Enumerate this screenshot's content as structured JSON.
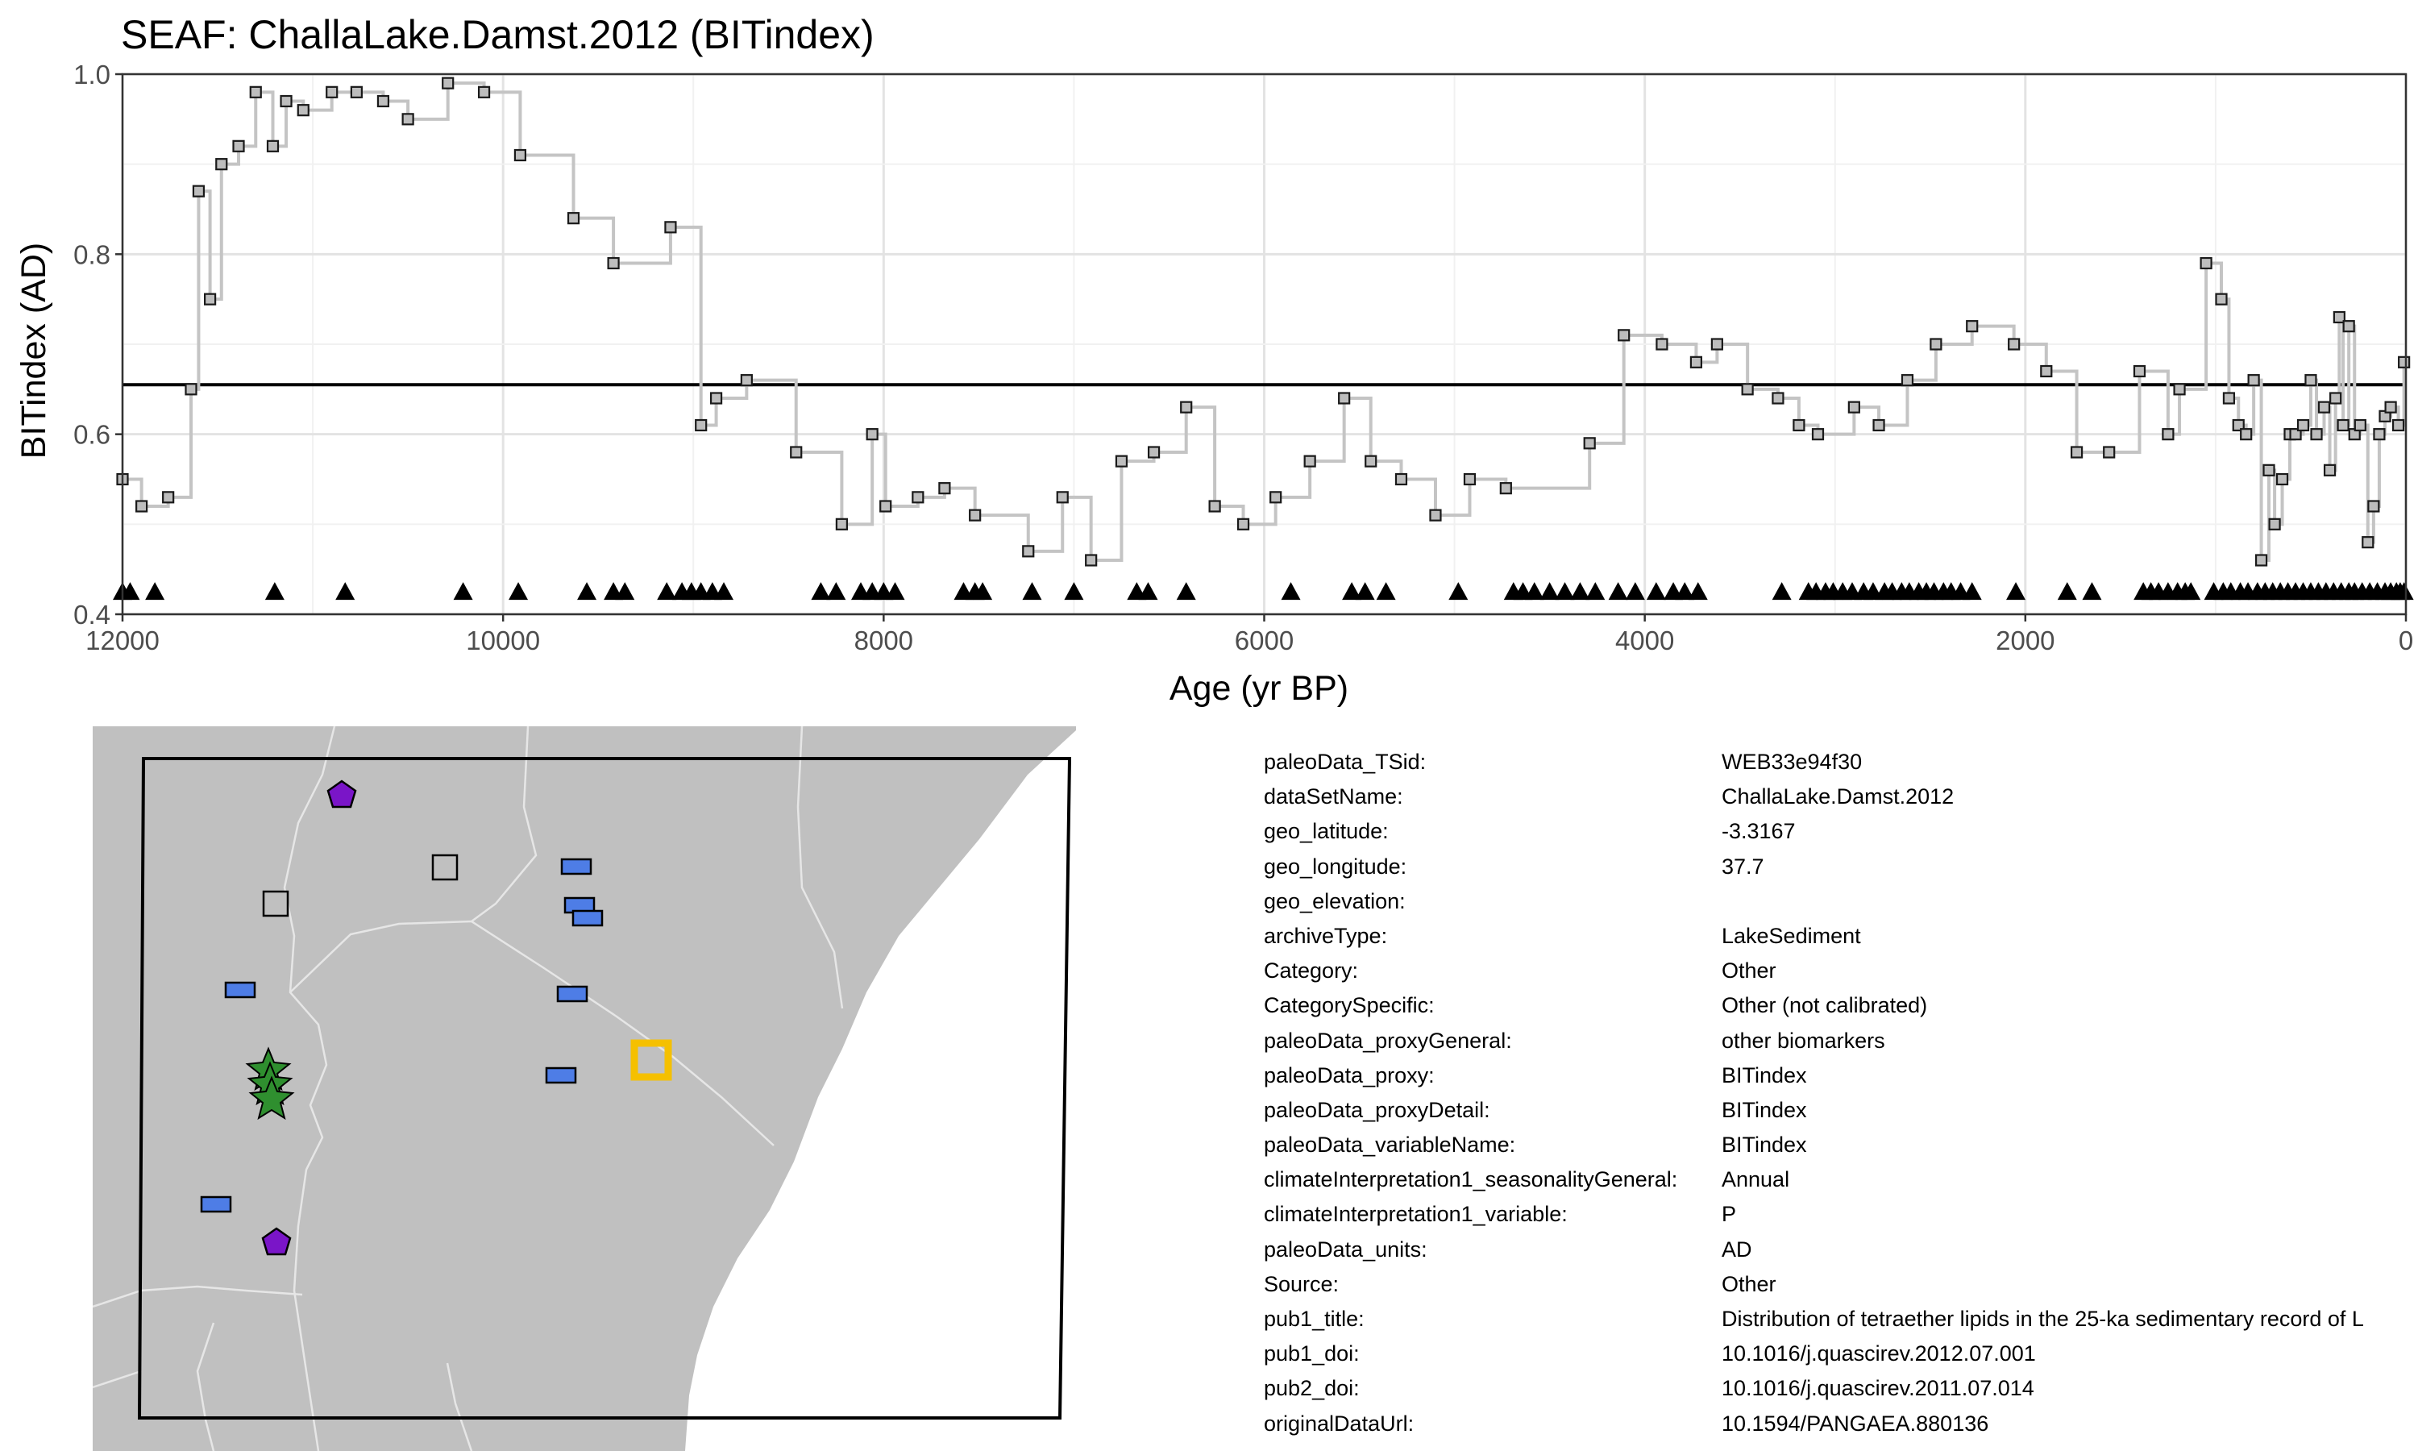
{
  "chart_data": {
    "type": "line",
    "title": "SEAF: ChallaLake.Damst.2012 (BITindex)",
    "xlabel": "Age (yr BP)",
    "ylabel": "BITindex (AD)",
    "xlim": [
      12000,
      0
    ],
    "ylim": [
      0.4,
      1.0
    ],
    "x_reversed": true,
    "x_ticks": [
      12000,
      10000,
      8000,
      6000,
      4000,
      2000,
      0
    ],
    "y_ticks": [
      0.4,
      0.6,
      0.8,
      1.0
    ],
    "y_tick_labels": [
      "0.4",
      "0.6",
      "0.8",
      "1.0"
    ],
    "grid": true,
    "mean_line": 0.655,
    "series": [
      {
        "style": "step-line-with-square-markers",
        "x": [
          12000,
          11900,
          11760,
          11640,
          11600,
          11540,
          11480,
          11390,
          11300,
          11210,
          11140,
          11050,
          10900,
          10770,
          10630,
          10500,
          10290,
          10100,
          9910,
          9630,
          9420,
          9120,
          8960,
          8880,
          8720,
          8460,
          8220,
          8060,
          7990,
          7820,
          7680,
          7520,
          7240,
          7060,
          6910,
          6750,
          6580,
          6410,
          6260,
          6110,
          5940,
          5760,
          5580,
          5440,
          5280,
          5100,
          4920,
          4730,
          4290,
          4110,
          3910,
          3730,
          3620,
          3460,
          3300,
          3190,
          3090,
          2900,
          2770,
          2620,
          2470,
          2280,
          2060,
          1890,
          1730,
          1560,
          1400,
          1250,
          1190,
          1050,
          970,
          930,
          880,
          840,
          800,
          760,
          720,
          690,
          650,
          610,
          580,
          540,
          500,
          470,
          430,
          400,
          370,
          350,
          330,
          300,
          270,
          240,
          200,
          170,
          140,
          110,
          80,
          40,
          10
        ],
        "y": [
          0.55,
          0.52,
          0.53,
          0.65,
          0.87,
          0.75,
          0.9,
          0.92,
          0.98,
          0.92,
          0.97,
          0.96,
          0.98,
          0.98,
          0.97,
          0.95,
          0.99,
          0.98,
          0.91,
          0.84,
          0.79,
          0.83,
          0.61,
          0.64,
          0.66,
          0.58,
          0.5,
          0.6,
          0.52,
          0.53,
          0.54,
          0.51,
          0.47,
          0.53,
          0.46,
          0.57,
          0.58,
          0.63,
          0.52,
          0.5,
          0.53,
          0.57,
          0.64,
          0.57,
          0.55,
          0.51,
          0.55,
          0.54,
          0.59,
          0.71,
          0.7,
          0.68,
          0.7,
          0.65,
          0.64,
          0.61,
          0.6,
          0.63,
          0.61,
          0.66,
          0.7,
          0.72,
          0.7,
          0.67,
          0.58,
          0.58,
          0.67,
          0.6,
          0.65,
          0.79,
          0.75,
          0.64,
          0.61,
          0.6,
          0.66,
          0.46,
          0.56,
          0.5,
          0.55,
          0.6,
          0.6,
          0.61,
          0.66,
          0.6,
          0.63,
          0.56,
          0.64,
          0.73,
          0.61,
          0.72,
          0.6,
          0.61,
          0.48,
          0.52,
          0.6,
          0.62,
          0.63,
          0.61,
          0.68
        ]
      },
      {
        "style": "triangle-age-markers",
        "y_value": 0.425,
        "x": [
          12000,
          11960,
          11830,
          11200,
          10830,
          10210,
          9920,
          9560,
          9420,
          9360,
          9140,
          9060,
          9010,
          8960,
          8900,
          8840,
          8330,
          8250,
          8120,
          8060,
          8000,
          7940,
          7580,
          7520,
          7480,
          7220,
          7000,
          6670,
          6610,
          6410,
          5860,
          5540,
          5470,
          5360,
          4980,
          4690,
          4640,
          4580,
          4500,
          4420,
          4340,
          4260,
          4140,
          4050,
          3940,
          3850,
          3790,
          3720,
          3280,
          3140,
          3100,
          3050,
          3010,
          2960,
          2910,
          2850,
          2800,
          2740,
          2700,
          2650,
          2610,
          2560,
          2520,
          2480,
          2430,
          2390,
          2340,
          2280,
          2050,
          1780,
          1650,
          1380,
          1340,
          1300,
          1250,
          1200,
          1160,
          1130,
          1010,
          960,
          920,
          870,
          830,
          780,
          740,
          700,
          660,
          620,
          580,
          540,
          500,
          460,
          420,
          380,
          340,
          300,
          270,
          230,
          190,
          150,
          110,
          80,
          50,
          30,
          10
        ]
      }
    ]
  },
  "map": {
    "land_color": "#c0c0c0",
    "water_color": "#ffffff",
    "border_color": "#e6e6e6",
    "markers": [
      {
        "shape": "pentagon",
        "color": "#7a15c8"
      },
      {
        "shape": "square",
        "color": "#c0c0c0"
      },
      {
        "shape": "square",
        "color": "#c0c0c0"
      },
      {
        "shape": "rectangle",
        "color": "#4e7de6"
      },
      {
        "shape": "rectangle",
        "color": "#4e7de6"
      },
      {
        "shape": "rectangle",
        "color": "#4e7de6"
      },
      {
        "shape": "rectangle",
        "color": "#4e7de6"
      },
      {
        "shape": "rectangle",
        "color": "#4e7de6"
      },
      {
        "shape": "rectangle",
        "color": "#4e7de6"
      },
      {
        "shape": "rectangle",
        "color": "#4e7de6"
      },
      {
        "shape": "star",
        "color": "#2f8f2f"
      },
      {
        "shape": "star",
        "color": "#2f8f2f"
      },
      {
        "shape": "star",
        "color": "#2f8f2f"
      },
      {
        "shape": "pentagon",
        "color": "#7a15c8"
      },
      {
        "shape": "highlight-square",
        "color": "#f5c000"
      }
    ]
  },
  "metadata": [
    {
      "key": "paleoData_TSid:",
      "value": "WEB33e94f30"
    },
    {
      "key": "dataSetName:",
      "value": "ChallaLake.Damst.2012"
    },
    {
      "key": "geo_latitude:",
      "value": "-3.3167"
    },
    {
      "key": "geo_longitude:",
      "value": "37.7"
    },
    {
      "key": "geo_elevation:",
      "value": ""
    },
    {
      "key": "archiveType:",
      "value": "LakeSediment"
    },
    {
      "key": "Category:",
      "value": "Other"
    },
    {
      "key": "CategorySpecific:",
      "value": "Other (not calibrated)"
    },
    {
      "key": "paleoData_proxyGeneral:",
      "value": "other biomarkers"
    },
    {
      "key": "paleoData_proxy:",
      "value": "BITindex"
    },
    {
      "key": "paleoData_proxyDetail:",
      "value": "BITindex"
    },
    {
      "key": "paleoData_variableName:",
      "value": "BITindex"
    },
    {
      "key": "climateInterpretation1_seasonalityGeneral:",
      "value": "Annual"
    },
    {
      "key": "climateInterpretation1_variable:",
      "value": "P"
    },
    {
      "key": "paleoData_units:",
      "value": "AD"
    },
    {
      "key": "Source:",
      "value": "Other"
    },
    {
      "key": "pub1_title:",
      "value": "Distribution of tetraether lipids in the 25-ka sedimentary record of L"
    },
    {
      "key": "pub1_doi:",
      "value": "10.1016/j.quascirev.2012.07.001"
    },
    {
      "key": "pub2_doi:",
      "value": "10.1016/j.quascirev.2011.07.014"
    },
    {
      "key": "originalDataUrl:",
      "value": "10.1594/PANGAEA.880136"
    }
  ]
}
